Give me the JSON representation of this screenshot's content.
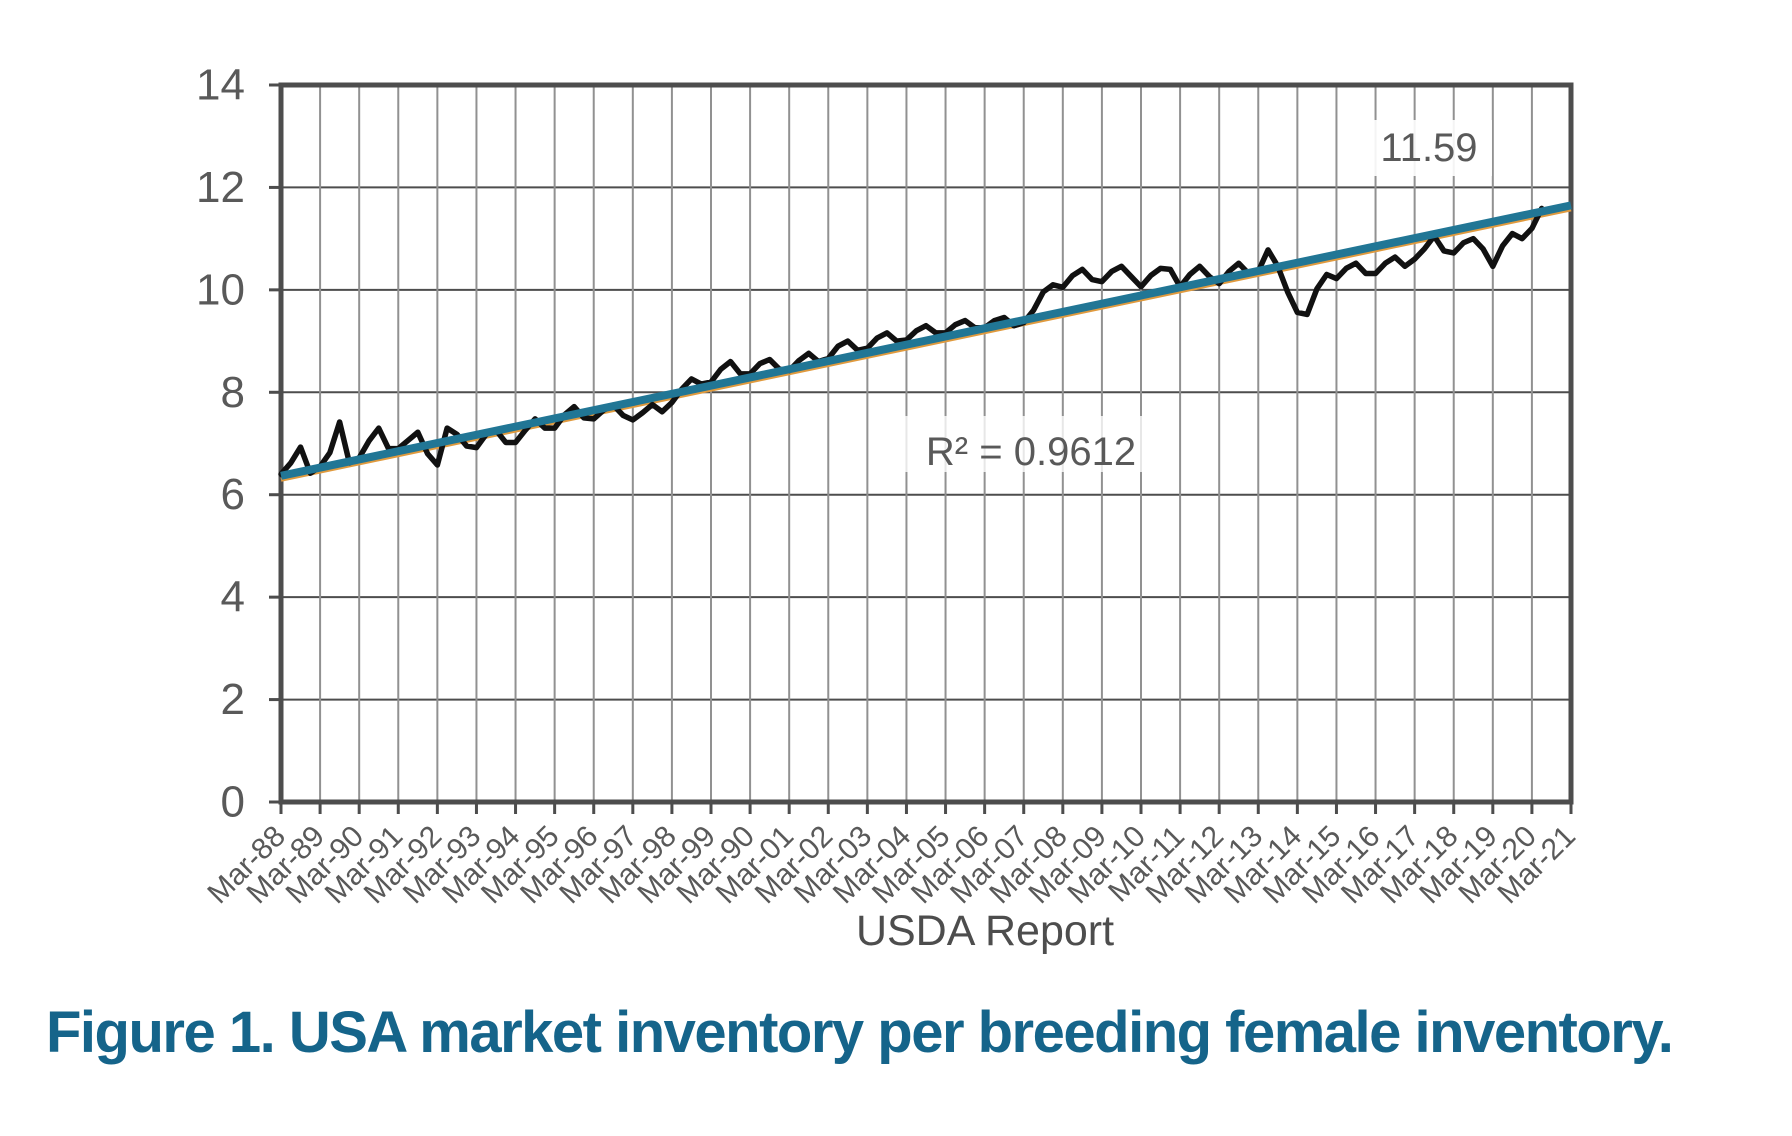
{
  "figure": {
    "caption": "Figure 1. USA market inventory per breeding female inventory.",
    "caption_color": "#15648a"
  },
  "chart_data": {
    "type": "line",
    "title": "",
    "xlabel": "USDA Report",
    "ylabel": "",
    "ylim": [
      0,
      14
    ],
    "y_ticks": [
      0,
      2,
      4,
      6,
      8,
      10,
      12,
      14
    ],
    "x_tick_labels": [
      "Mar-88",
      "Mar-89",
      "Mar-90",
      "Mar-91",
      "Mar-92",
      "Mar-93",
      "Mar-94",
      "Mar-95",
      "Mar-96",
      "Mar-97",
      "Mar-98",
      "Mar-99",
      "Mar-90",
      "Mar-01",
      "Mar-02",
      "Mar-03",
      "Mar-04",
      "Mar-05",
      "Mar-06",
      "Mar-07",
      "Mar-08",
      "Mar-09",
      "Mar-10",
      "Mar-11",
      "Mar-12",
      "Mar-13",
      "Mar-14",
      "Mar-15",
      "Mar-16",
      "Mar-17",
      "Mar-18",
      "Mar-19",
      "Mar-20",
      "Mar-21"
    ],
    "grid": "both",
    "legend": "none",
    "series": [
      {
        "name": "USA market inventory per breeding female inventory",
        "frequency": "quarterly",
        "start": "Mar-88",
        "end": "Jun-20",
        "color": "#111111",
        "values": [
          6.4,
          6.62,
          6.93,
          6.42,
          6.55,
          6.82,
          7.42,
          6.62,
          6.72,
          7.05,
          7.3,
          6.9,
          6.9,
          7.06,
          7.22,
          6.8,
          6.58,
          7.3,
          7.18,
          6.95,
          6.92,
          7.18,
          7.26,
          7.02,
          7.02,
          7.26,
          7.48,
          7.3,
          7.3,
          7.56,
          7.72,
          7.5,
          7.48,
          7.65,
          7.75,
          7.55,
          7.46,
          7.6,
          7.76,
          7.62,
          7.8,
          8.06,
          8.26,
          8.16,
          8.2,
          8.45,
          8.6,
          8.36,
          8.36,
          8.56,
          8.64,
          8.45,
          8.42,
          8.62,
          8.76,
          8.6,
          8.66,
          8.9,
          9.0,
          8.82,
          8.86,
          9.06,
          9.16,
          9.0,
          9.02,
          9.2,
          9.3,
          9.16,
          9.16,
          9.32,
          9.4,
          9.26,
          9.26,
          9.4,
          9.46,
          9.3,
          9.36,
          9.6,
          9.96,
          10.1,
          10.05,
          10.28,
          10.4,
          10.2,
          10.16,
          10.36,
          10.46,
          10.26,
          10.06,
          10.28,
          10.42,
          10.4,
          10.06,
          10.3,
          10.46,
          10.26,
          10.12,
          10.36,
          10.52,
          10.32,
          10.36,
          10.78,
          10.46,
          9.96,
          9.56,
          9.52,
          10.02,
          10.3,
          10.22,
          10.42,
          10.52,
          10.32,
          10.32,
          10.52,
          10.64,
          10.46,
          10.6,
          10.8,
          11.05,
          10.76,
          10.72,
          10.92,
          11.0,
          10.8,
          10.46,
          10.86,
          11.1,
          11.0,
          11.2,
          11.59
        ]
      }
    ],
    "trendline": {
      "type": "linear",
      "start_value": 6.35,
      "end_value": 11.63,
      "color": "#217695",
      "underlay_color": "#e09a3e",
      "r2_label": "R² = 0.9612",
      "last_value_label": "11.59"
    },
    "axis_color": "#4d4d4d",
    "h_grid_color": "#4d4d4d",
    "v_grid_color": "#919191",
    "tick_label_color": "#595959"
  }
}
